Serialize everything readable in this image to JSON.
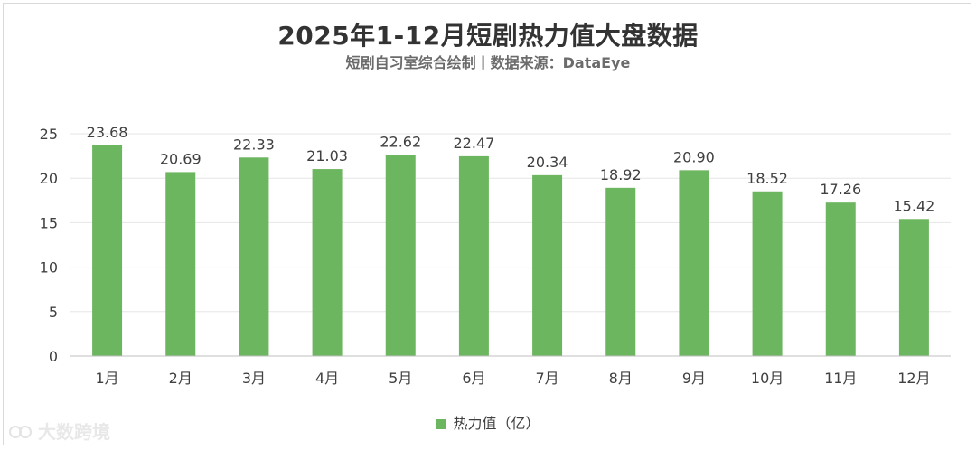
{
  "title": "2025年1-12月短剧热力值大盘数据",
  "subtitle": "短剧自习室综合绘制丨数据来源：DataEye",
  "watermark": "大数跨境",
  "colors": {
    "bar": "#6db660",
    "grid": "#e6e6e6",
    "axis": "#bfbfbf",
    "text": "#404040"
  },
  "chart_data": {
    "type": "bar",
    "categories": [
      "1月",
      "2月",
      "3月",
      "4月",
      "5月",
      "6月",
      "7月",
      "8月",
      "9月",
      "10月",
      "11月",
      "12月"
    ],
    "series": [
      {
        "name": "热力值（亿）",
        "values": [
          23.68,
          20.69,
          22.33,
          21.03,
          22.62,
          22.47,
          20.34,
          18.92,
          20.9,
          18.52,
          17.26,
          15.42
        ]
      }
    ],
    "data_labels": [
      "23.68",
      "20.69",
      "22.33",
      "21.03",
      "22.62",
      "22.47",
      "20.34",
      "18.92",
      "20.90",
      "18.52",
      "17.26",
      "15.42"
    ],
    "ylim": [
      0,
      25
    ],
    "yticks": [
      0,
      5,
      10,
      15,
      20,
      25
    ],
    "grid": true,
    "legend": "bottom"
  }
}
